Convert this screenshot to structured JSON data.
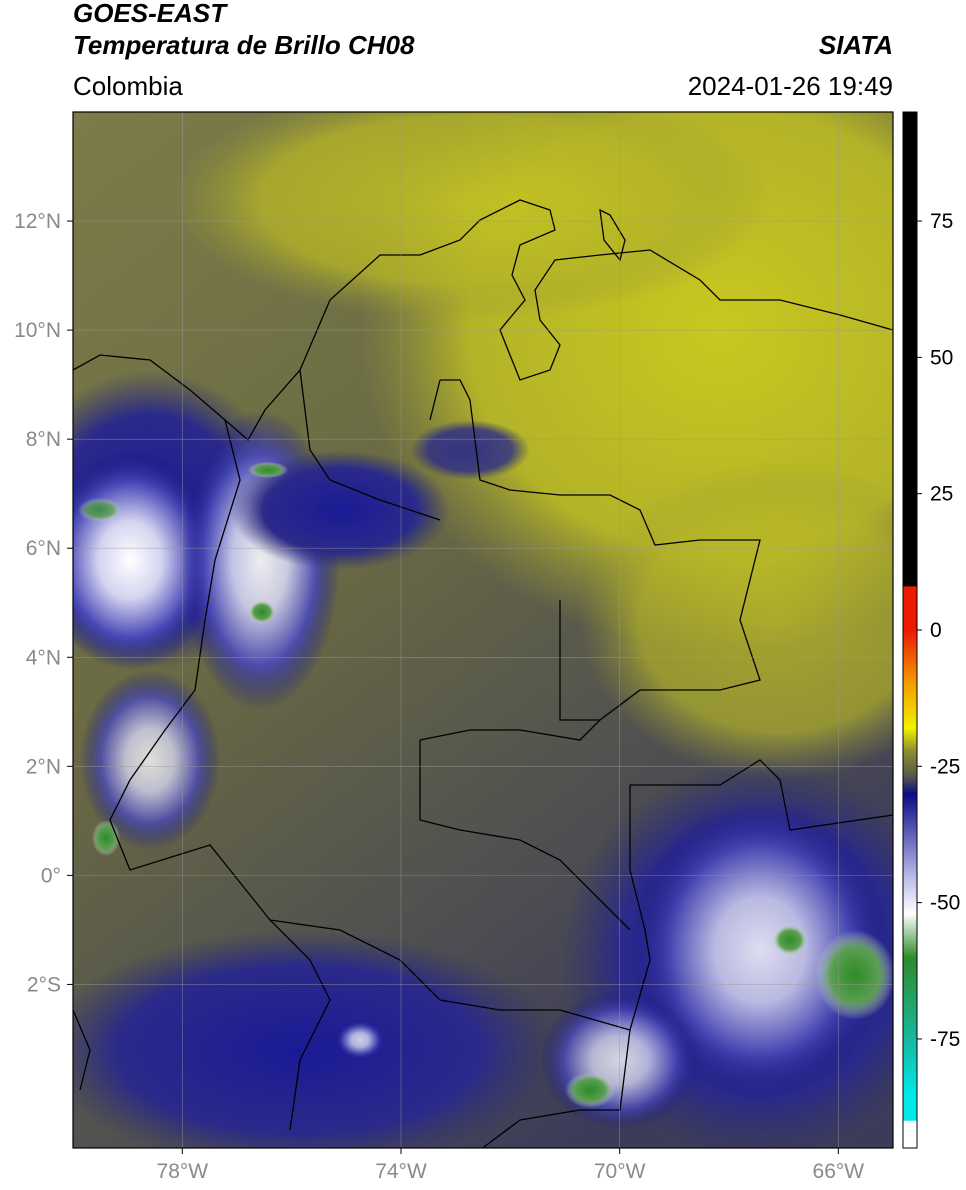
{
  "header": {
    "title_line1": "GOES-EAST",
    "title_line2": "Temperatura de Brillo CH08",
    "region": "Colombia",
    "agency": "SIATA",
    "datetime": "2024-01-26 19:49"
  },
  "map": {
    "lon_range": [
      -80,
      -65
    ],
    "lat_range": [
      -5,
      14
    ],
    "lat_ticks": [
      {
        "value": 12,
        "label": "12°N"
      },
      {
        "value": 10,
        "label": "10°N"
      },
      {
        "value": 8,
        "label": "8°N"
      },
      {
        "value": 6,
        "label": "6°N"
      },
      {
        "value": 4,
        "label": "4°N"
      },
      {
        "value": 2,
        "label": "2°N"
      },
      {
        "value": 0,
        "label": "0°"
      },
      {
        "value": -2,
        "label": "2°S"
      }
    ],
    "lon_ticks": [
      {
        "value": -78,
        "label": "78°W"
      },
      {
        "value": -74,
        "label": "74°W"
      },
      {
        "value": -70,
        "label": "70°W"
      },
      {
        "value": -66,
        "label": "66°W"
      }
    ],
    "grid": true
  },
  "colorbar": {
    "range": [
      -95,
      95
    ],
    "ticks": [
      {
        "value": 75,
        "label": "75"
      },
      {
        "value": 50,
        "label": "50"
      },
      {
        "value": 25,
        "label": "25"
      },
      {
        "value": 0,
        "label": "0"
      },
      {
        "value": -25,
        "label": "-25"
      },
      {
        "value": -50,
        "label": "-50"
      },
      {
        "value": -75,
        "label": "-75"
      }
    ],
    "colors": {
      "warm_black": "#000000",
      "red": "#ee1a00",
      "orange": "#f2a000",
      "yellow": "#f2f200",
      "olive": "#8f8f30",
      "gray": "#54544c",
      "dark_blue": "#0a0a88",
      "light_blue": "#b8b8e8",
      "white": "#ffffff",
      "green": "#2e8b2a",
      "teal": "#18b8a0",
      "cyan": "#00e8e8"
    }
  }
}
